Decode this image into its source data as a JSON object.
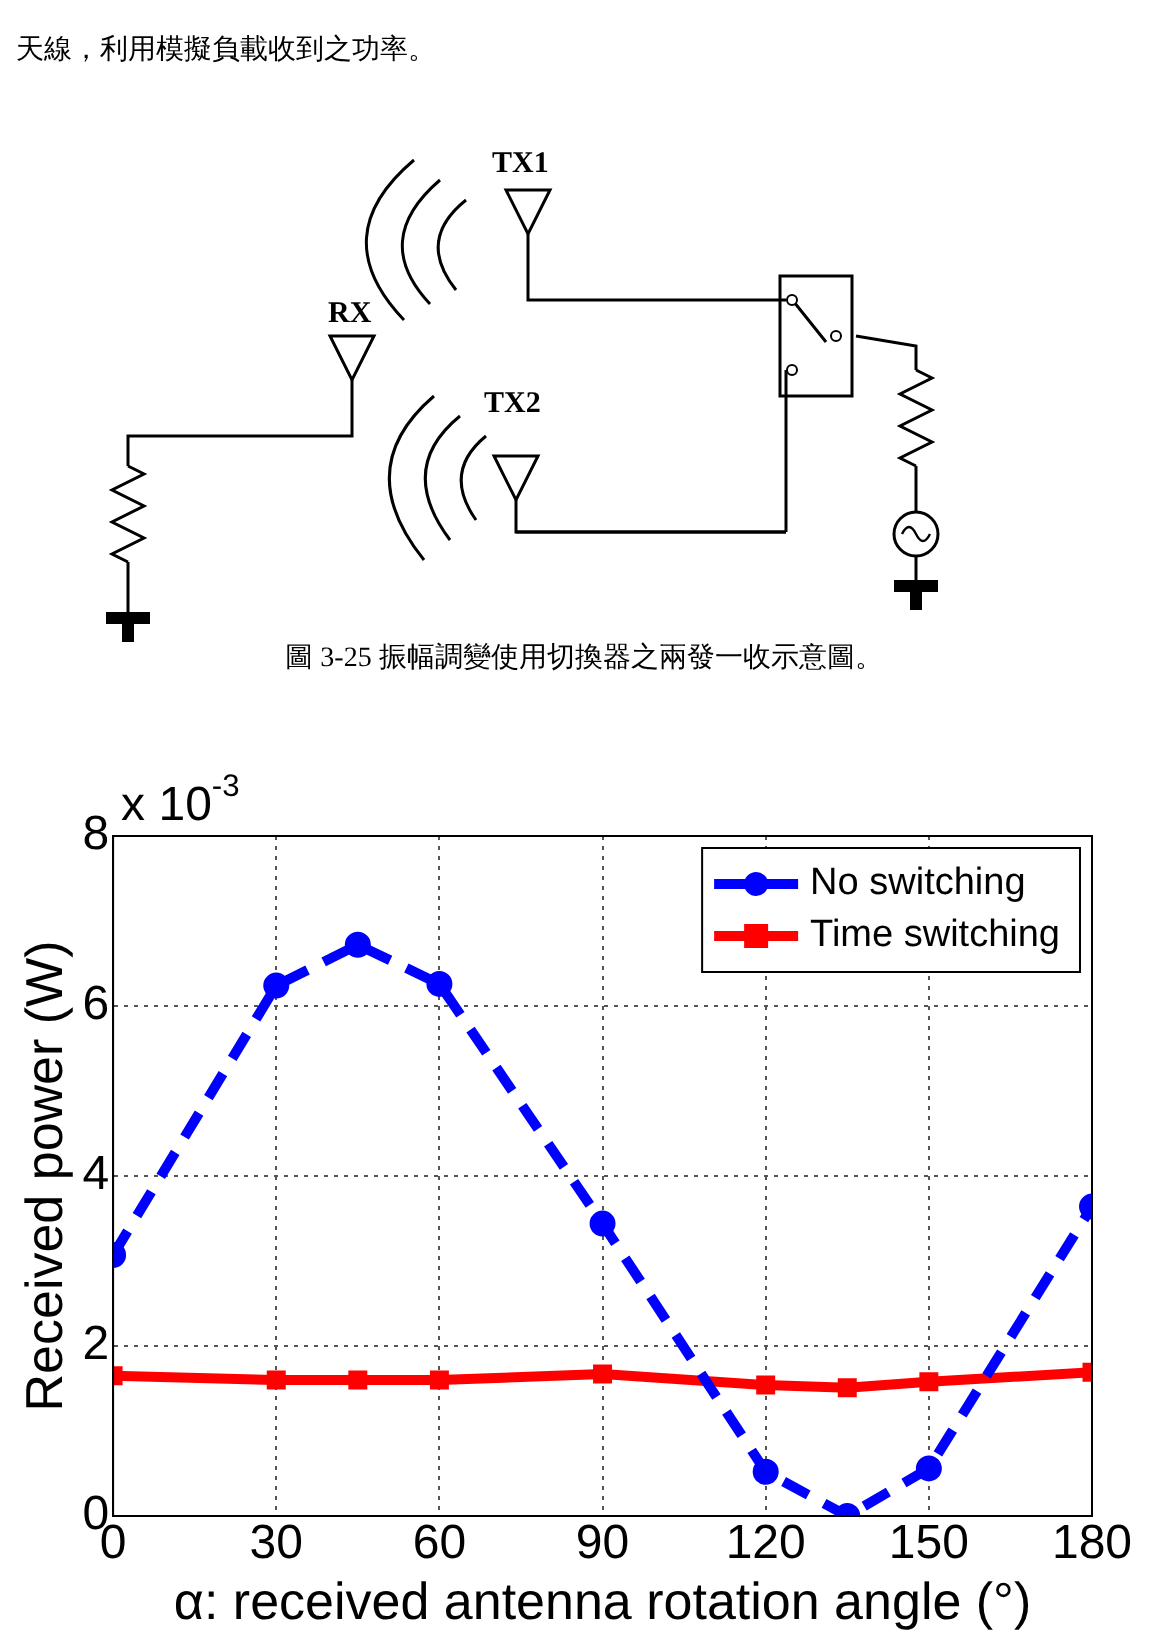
{
  "chart_data": {
    "type": "line",
    "annotations": [
      "天線，利用模擬負載收到之功率。",
      "TX1",
      "RX",
      "TX2",
      "圖 3-25  振幅調變使用切換器之兩發一收示意圖。",
      "x 10$^{-3}$"
    ],
    "xlabel": "α: received antenna rotation angle (°)",
    "ylabel": "Received power (W)",
    "x": [
      0,
      30,
      45,
      60,
      90,
      120,
      135,
      150,
      180
    ],
    "series": [
      {
        "name": "No switching",
        "color": "#0000ff",
        "marker": "circle",
        "line_style": "dashed",
        "values": [
          3.07,
          6.24,
          6.72,
          6.26,
          3.44,
          0.52,
          0,
          0.56,
          3.64
        ]
      },
      {
        "name": "Time switching",
        "color": "#ff0000",
        "marker": "square",
        "line_style": "solid",
        "values": [
          1.65,
          1.6,
          1.6,
          1.6,
          1.67,
          1.54,
          1.51,
          1.58,
          1.69
        ]
      }
    ],
    "xlim": [
      0,
      180
    ],
    "xticks": [
      0,
      30,
      60,
      90,
      120,
      150,
      180
    ],
    "ylim": [
      0,
      8
    ],
    "yticks": [
      0,
      2,
      4,
      6,
      8
    ],
    "grid": true,
    "legend": "top right"
  }
}
